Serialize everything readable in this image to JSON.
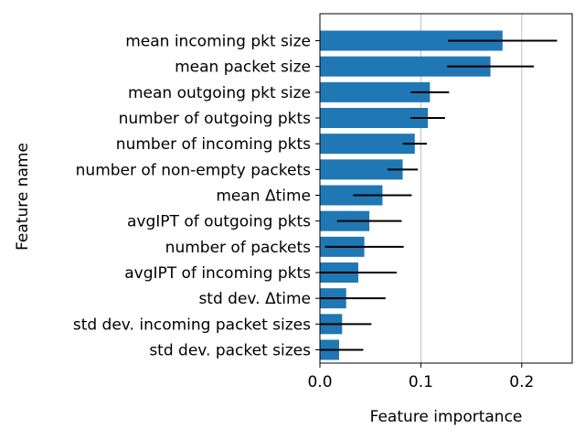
{
  "chart_data": {
    "type": "bar",
    "orientation": "horizontal",
    "xlabel": "Feature importance",
    "ylabel": "Feature name",
    "xlim": [
      0.0,
      0.25
    ],
    "xticks": [
      "0.0",
      "0.1",
      "0.2"
    ],
    "xtick_values": [
      0.0,
      0.1,
      0.2
    ],
    "grid": "vertical",
    "bar_color": "#1f77b4",
    "errorbar_color": "#000000",
    "categories": [
      "mean incoming pkt size",
      "mean packet size",
      "mean outgoing pkt size",
      "number of outgoing pkts",
      "number of incoming pkts",
      "number of non-empty packets",
      "mean Δtime",
      "avgIPT of outgoing pkts",
      "number of packets",
      "avgIPT of incoming pkts",
      "std dev. Δtime",
      "std dev. incoming packet sizes",
      "std dev. packet sizes"
    ],
    "values": [
      0.181,
      0.169,
      0.109,
      0.107,
      0.094,
      0.082,
      0.062,
      0.049,
      0.044,
      0.038,
      0.026,
      0.022,
      0.019
    ],
    "errors": [
      0.054,
      0.043,
      0.019,
      0.017,
      0.012,
      0.015,
      0.029,
      0.032,
      0.039,
      0.038,
      0.039,
      0.029,
      0.024
    ]
  }
}
